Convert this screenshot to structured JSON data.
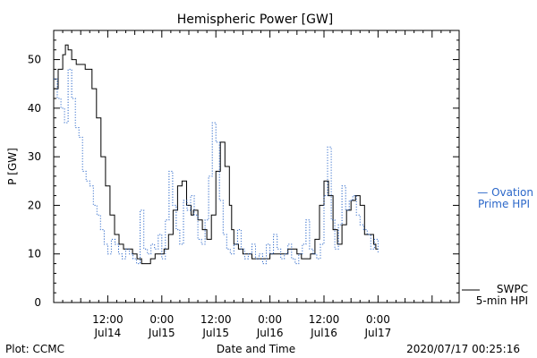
{
  "chart_data": {
    "type": "line",
    "title": "Hemispheric Power [GW]",
    "xlabel": "Date and Time",
    "ylabel": "P [GW]",
    "x_unit": "hours from 2020/07/13 06:00",
    "xlim": [
      0,
      90
    ],
    "ylim": [
      0,
      56
    ],
    "y_ticks": [
      0,
      10,
      20,
      30,
      40,
      50
    ],
    "x_ticks": [
      {
        "x": 12,
        "line1": "12:00",
        "line2": "Jul14"
      },
      {
        "x": 24,
        "line1": "0:00",
        "line2": "Jul15"
      },
      {
        "x": 36,
        "line1": "12:00",
        "line2": "Jul15"
      },
      {
        "x": 48,
        "line1": "0:00",
        "line2": "Jul16"
      },
      {
        "x": 60,
        "line1": "12:00",
        "line2": "Jul16"
      },
      {
        "x": 72,
        "line1": "0:00",
        "line2": "Jul17"
      }
    ],
    "grid": false,
    "legend_position": "right",
    "series": [
      {
        "name": "SWPC 5-min HPI",
        "legend_line1": "SWPC",
        "legend_line2": "5-min HPI",
        "color": "#000000",
        "style": "solid",
        "x": [
          0.0,
          1.0,
          2.0,
          2.6,
          3.2,
          4.0,
          5.0,
          6.0,
          7.0,
          8.5,
          9.5,
          10.5,
          11.5,
          12.5,
          13.5,
          14.5,
          15.5,
          16.5,
          17.5,
          18.5,
          19.5,
          20.5,
          21.5,
          22.5,
          23.5,
          24.5,
          25.5,
          26.5,
          27.5,
          28.5,
          29.5,
          30.5,
          31.0,
          32.0,
          33.0,
          34.0,
          35.0,
          36.0,
          37.0,
          38.0,
          39.0,
          39.5,
          40.0,
          41.0,
          42.0,
          43.0,
          44.0,
          45.0,
          46.0,
          47.0,
          48.0,
          49.0,
          50.0,
          51.0,
          52.0,
          53.0,
          54.0,
          55.0,
          56.0,
          57.0,
          58.0,
          59.0,
          60.0,
          61.0,
          62.0,
          63.0,
          64.0,
          65.0,
          66.0,
          67.0,
          68.0,
          69.0,
          70.0,
          71.0,
          71.5,
          72.0
        ],
        "y": [
          44,
          48,
          51,
          53,
          52,
          50,
          49,
          49,
          48,
          44,
          38,
          30,
          24,
          18,
          14,
          12,
          11,
          11,
          10,
          9,
          8,
          8,
          9,
          10,
          10,
          11,
          14,
          19,
          24,
          25,
          20,
          18,
          19,
          17,
          15,
          13,
          18,
          27,
          33,
          28,
          20,
          15,
          12,
          11,
          10,
          10,
          9,
          9,
          9,
          9,
          10,
          10,
          10,
          10,
          11,
          11,
          10,
          9,
          9,
          10,
          13,
          20,
          25,
          22,
          15,
          12,
          16,
          19,
          21,
          22,
          20,
          14,
          14,
          12,
          11,
          11
        ]
      },
      {
        "name": "Ovation Prime HPI",
        "legend_line1": "— Ovation",
        "legend_line2": "Prime HPI",
        "color": "#2b67c9",
        "style": "dotted",
        "x": [
          0.0,
          0.8,
          1.6,
          2.4,
          3.2,
          4.0,
          4.8,
          5.6,
          6.4,
          7.2,
          8.0,
          8.8,
          9.6,
          10.4,
          11.2,
          12.0,
          12.8,
          13.6,
          14.4,
          15.2,
          16.0,
          16.8,
          17.6,
          18.4,
          19.2,
          20.0,
          20.8,
          21.6,
          22.4,
          23.2,
          24.0,
          24.8,
          25.6,
          26.4,
          27.2,
          28.0,
          28.8,
          29.6,
          30.4,
          31.2,
          32.0,
          32.8,
          33.6,
          34.4,
          35.2,
          36.0,
          36.8,
          37.6,
          38.4,
          39.2,
          40.0,
          40.8,
          41.6,
          42.4,
          43.2,
          44.0,
          44.8,
          45.6,
          46.4,
          47.2,
          48.0,
          48.8,
          49.6,
          50.4,
          51.2,
          52.0,
          52.8,
          53.6,
          54.4,
          55.2,
          56.0,
          56.8,
          57.6,
          58.4,
          59.2,
          60.0,
          60.8,
          61.6,
          62.4,
          63.2,
          64.0,
          64.8,
          65.6,
          66.4,
          67.2,
          68.0,
          68.8,
          69.6,
          70.4,
          71.2,
          72.0
        ],
        "y": [
          46,
          42,
          40,
          37,
          48,
          42,
          36,
          34,
          27,
          25,
          24,
          20,
          18,
          15,
          12,
          10,
          13,
          12,
          10,
          9,
          11,
          10,
          9,
          8,
          19,
          11,
          10,
          12,
          11,
          14,
          9,
          17,
          27,
          20,
          15,
          12,
          21,
          19,
          22,
          18,
          13,
          12,
          17,
          26,
          37,
          33,
          21,
          14,
          11,
          10,
          12,
          15,
          11,
          9,
          10,
          12,
          9,
          10,
          8,
          12,
          10,
          14,
          11,
          9,
          10,
          12,
          9,
          8,
          10,
          12,
          17,
          11,
          10,
          9,
          12,
          22,
          32,
          17,
          11,
          16,
          24,
          19,
          21,
          22,
          18,
          16,
          15,
          14,
          11,
          13,
          10
        ]
      }
    ],
    "footer_left": "Plot: CCMC",
    "footer_right": "2020/07/17 00:25:16"
  }
}
